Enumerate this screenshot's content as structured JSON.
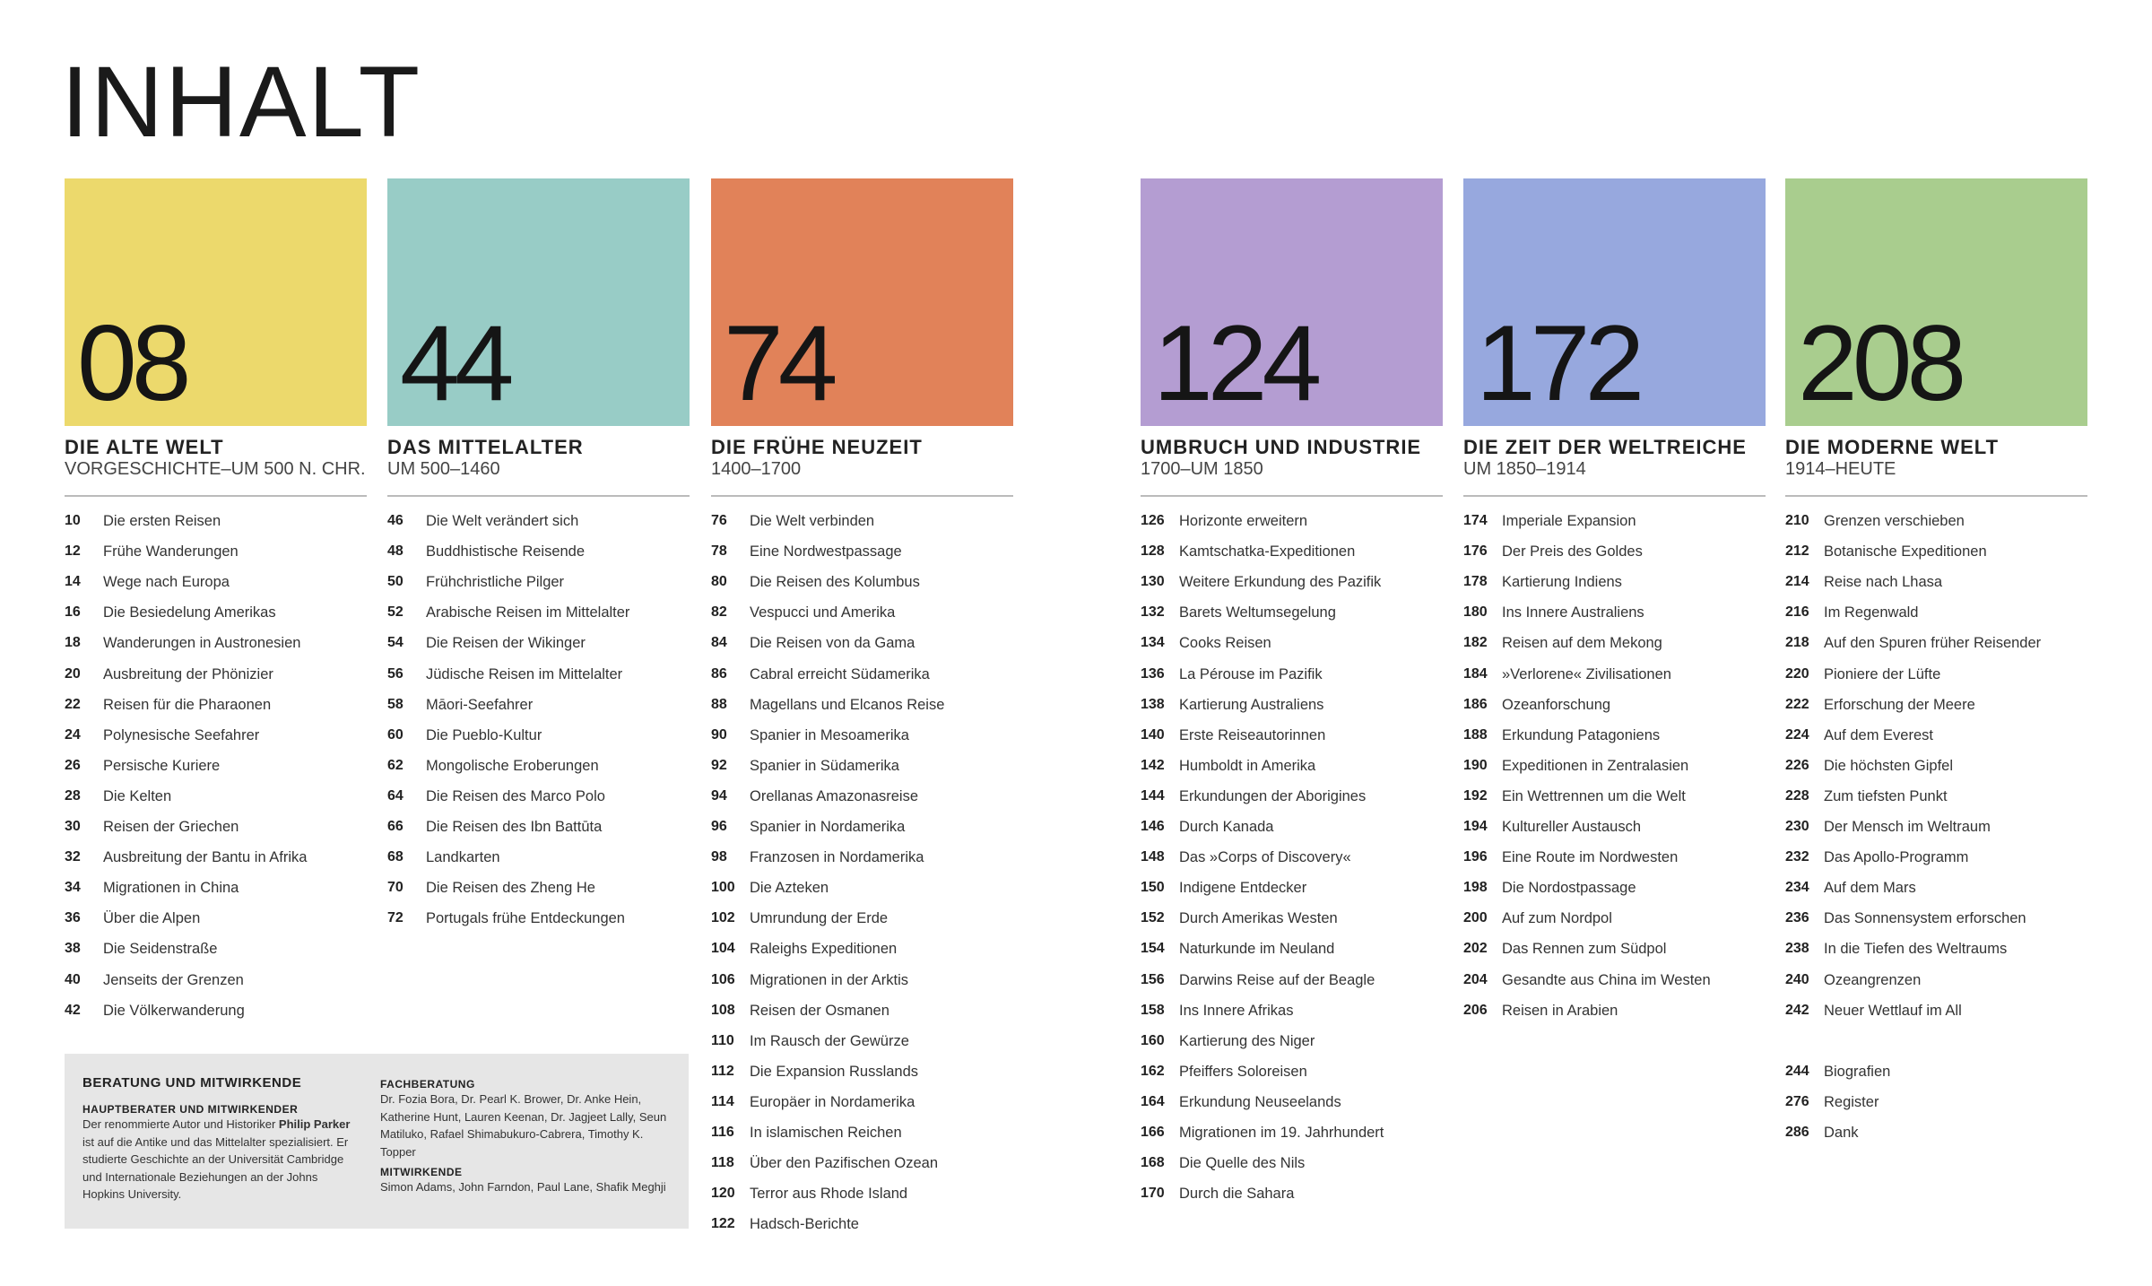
{
  "header": {
    "title": "INHALT"
  },
  "sections": [
    {
      "number": "08",
      "title": "DIE ALTE WELT",
      "subtitle": "VORGESCHICHTE–UM 500 N. CHR.",
      "entries": [
        [
          "10",
          "Die ersten Reisen"
        ],
        [
          "12",
          "Frühe Wanderungen"
        ],
        [
          "14",
          "Wege nach Europa"
        ],
        [
          "16",
          "Die Besiedelung Amerikas"
        ],
        [
          "18",
          "Wanderungen in Austronesien"
        ],
        [
          "20",
          "Ausbreitung der Phönizier"
        ],
        [
          "22",
          "Reisen für die Pharaonen"
        ],
        [
          "24",
          "Polynesische Seefahrer"
        ],
        [
          "26",
          "Persische Kuriere"
        ],
        [
          "28",
          "Die Kelten"
        ],
        [
          "30",
          "Reisen der Griechen"
        ],
        [
          "32",
          "Ausbreitung der Bantu in Afrika"
        ],
        [
          "34",
          "Migrationen in China"
        ],
        [
          "36",
          "Über die Alpen"
        ],
        [
          "38",
          "Die Seidenstraße"
        ],
        [
          "40",
          "Jenseits der Grenzen"
        ],
        [
          "42",
          "Die Völkerwanderung"
        ]
      ]
    },
    {
      "number": "44",
      "title": "DAS MITTELALTER",
      "subtitle": "UM 500–1460",
      "entries": [
        [
          "46",
          "Die  Welt verändert sich"
        ],
        [
          "48",
          "Buddhistische Reisende"
        ],
        [
          "50",
          "Frühchristliche Pilger"
        ],
        [
          "52",
          "Arabische Reisen im Mittelalter"
        ],
        [
          "54",
          "Die Reisen der Wikinger"
        ],
        [
          "56",
          "Jüdische Reisen im Mittelalter"
        ],
        [
          "58",
          "Māori-Seefahrer"
        ],
        [
          "60",
          "Die Pueblo-Kultur"
        ],
        [
          "62",
          "Mongolische Eroberungen"
        ],
        [
          "64",
          "Die Reisen des Marco Polo"
        ],
        [
          "66",
          "Die Reisen des Ibn Battūta"
        ],
        [
          "68",
          "Landkarten"
        ],
        [
          "70",
          "Die Reisen des Zheng He"
        ],
        [
          "72",
          "Portugals frühe Entdeckungen"
        ]
      ]
    },
    {
      "number": "74",
      "title": "DIE FRÜHE NEUZEIT",
      "subtitle": "1400–1700",
      "entries": [
        [
          "76",
          "Die Welt verbinden"
        ],
        [
          "78",
          "Eine Nordwestpassage"
        ],
        [
          "80",
          "Die Reisen des Kolumbus"
        ],
        [
          "82",
          "Vespucci und Amerika"
        ],
        [
          "84",
          "Die Reisen von da Gama"
        ],
        [
          "86",
          "Cabral erreicht Südamerika"
        ],
        [
          "88",
          "Magellans und Elcanos Reise"
        ],
        [
          "90",
          "Spanier in Mesoamerika"
        ],
        [
          "92",
          "Spanier in Südamerika"
        ],
        [
          "94",
          "Orellanas Amazonasreise"
        ],
        [
          "96",
          "Spanier in Nordamerika"
        ],
        [
          "98",
          "Franzosen in Nordamerika"
        ],
        [
          "100",
          "Die Azteken"
        ],
        [
          "102",
          "Umrundung der Erde"
        ],
        [
          "104",
          "Raleighs Expeditionen"
        ],
        [
          "106",
          "Migrationen in der Arktis"
        ],
        [
          "108",
          "Reisen der Osmanen"
        ],
        [
          "110",
          "Im Rausch der Gewürze"
        ],
        [
          "112",
          "Die Expansion Russlands"
        ],
        [
          "114",
          "Europäer in Nordamerika"
        ],
        [
          "116",
          "In islamischen Reichen"
        ],
        [
          "118",
          "Über den Pazifischen Ozean"
        ],
        [
          "120",
          "Terror aus Rhode Island"
        ],
        [
          "122",
          "Hadsch-Berichte"
        ]
      ]
    },
    {
      "number": "124",
      "title": "UMBRUCH UND INDUSTRIE",
      "subtitle": "1700–UM 1850",
      "entries": [
        [
          "126",
          "Horizonte erweitern"
        ],
        [
          "128",
          "Kamtschatka-Expeditionen"
        ],
        [
          "130",
          "Weitere Erkundung des Pazifik"
        ],
        [
          "132",
          "Barets Weltumsegelung"
        ],
        [
          "134",
          "Cooks Reisen"
        ],
        [
          "136",
          "La Pérouse im Pazifik"
        ],
        [
          "138",
          "Kartierung Australiens"
        ],
        [
          "140",
          "Erste Reiseautorinnen"
        ],
        [
          "142",
          "Humboldt in Amerika"
        ],
        [
          "144",
          "Erkundungen der Aborigines"
        ],
        [
          "146",
          "Durch Kanada"
        ],
        [
          "148",
          "Das »Corps of Discovery«"
        ],
        [
          "150",
          "Indigene Entdecker"
        ],
        [
          "152",
          "Durch Amerikas Westen"
        ],
        [
          "154",
          "Naturkunde im Neuland"
        ],
        [
          "156",
          "Darwins Reise auf der Beagle"
        ],
        [
          "158",
          "Ins Innere Afrikas"
        ],
        [
          "160",
          "Kartierung des Niger"
        ],
        [
          "162",
          "Pfeiffers Soloreisen"
        ],
        [
          "164",
          "Erkundung Neuseelands"
        ],
        [
          "166",
          "Migrationen im 19. Jahrhundert"
        ],
        [
          "168",
          "Die Quelle des Nils"
        ],
        [
          "170",
          "Durch die Sahara"
        ]
      ]
    },
    {
      "number": "172",
      "title": "DIE ZEIT DER WELTREICHE",
      "subtitle": "UM 1850–1914",
      "entries": [
        [
          "174",
          "Imperiale Expansion"
        ],
        [
          "176",
          "Der Preis des Goldes"
        ],
        [
          "178",
          "Kartierung Indiens"
        ],
        [
          "180",
          "Ins Innere Australiens"
        ],
        [
          "182",
          "Reisen auf dem Mekong"
        ],
        [
          "184",
          "»Verlorene« Zivilisationen"
        ],
        [
          "186",
          "Ozeanforschung"
        ],
        [
          "188",
          "Erkundung Patagoniens"
        ],
        [
          "190",
          "Expeditionen in Zentralasien"
        ],
        [
          "192",
          "Ein Wettrennen um die Welt"
        ],
        [
          "194",
          "Kultureller Austausch"
        ],
        [
          "196",
          "Eine Route im Nordwesten"
        ],
        [
          "198",
          "Die Nordostpassage"
        ],
        [
          "200",
          "Auf zum Nordpol"
        ],
        [
          "202",
          "Das Rennen zum Südpol"
        ],
        [
          "204",
          "Gesandte aus China im Westen"
        ],
        [
          "206",
          "Reisen in Arabien"
        ]
      ]
    },
    {
      "number": "208",
      "title": "DIE MODERNE WELT",
      "subtitle": "1914–HEUTE",
      "entries": [
        [
          "210",
          "Grenzen verschieben"
        ],
        [
          "212",
          "Botanische Expeditionen"
        ],
        [
          "214",
          "Reise nach Lhasa"
        ],
        [
          "216",
          "Im Regenwald"
        ],
        [
          "218",
          "Auf den Spuren früher Reisender"
        ],
        [
          "220",
          "Pioniere der Lüfte"
        ],
        [
          "222",
          "Erforschung der Meere"
        ],
        [
          "224",
          "Auf dem Everest"
        ],
        [
          "226",
          "Die höchsten Gipfel"
        ],
        [
          "228",
          "Zum tiefsten Punkt"
        ],
        [
          "230",
          "Der Mensch im Weltraum"
        ],
        [
          "232",
          "Das Apollo-Programm"
        ],
        [
          "234",
          "Auf dem Mars"
        ],
        [
          "236",
          "Das Sonnensystem erforschen"
        ],
        [
          "238",
          "In die Tiefen des Weltraums"
        ],
        [
          "240",
          "Ozeangrenzen"
        ],
        [
          "242",
          "Neuer Wettlauf im All"
        ]
      ]
    }
  ],
  "back_matter": [
    [
      "244",
      "Biografien"
    ],
    [
      "276",
      "Register"
    ],
    [
      "286",
      "Dank"
    ]
  ],
  "credits": {
    "title": "BERATUNG UND MITWIRKENDE",
    "main_heading": "HAUPTBERATER UND MITWIRKENDER",
    "main_text_before": "Der renommierte Autor und Historiker ",
    "main_name": "Philip Parker",
    "main_text_after": " ist auf die Antike und das Mittelalter spezialisiert. Er studierte Geschichte an der Universität Cambridge und Internationale Beziehungen an der Johns Hopkins University.",
    "advisors_heading": "FACHBERATUNG",
    "advisors_text": "Dr. Fozia Bora, Dr. Pearl K. Brower, Dr. Anke Hein, Katherine Hunt, Lauren Keenan, Dr. Jagjeet Lally, Seun Matiluko, Rafael Shimabukuro-Cabrera, Timothy K. Topper",
    "contributors_heading": "MITWIRKENDE",
    "contributors_text": "Simon Adams, John Farndon, Paul Lane, Shafik Meghji"
  }
}
